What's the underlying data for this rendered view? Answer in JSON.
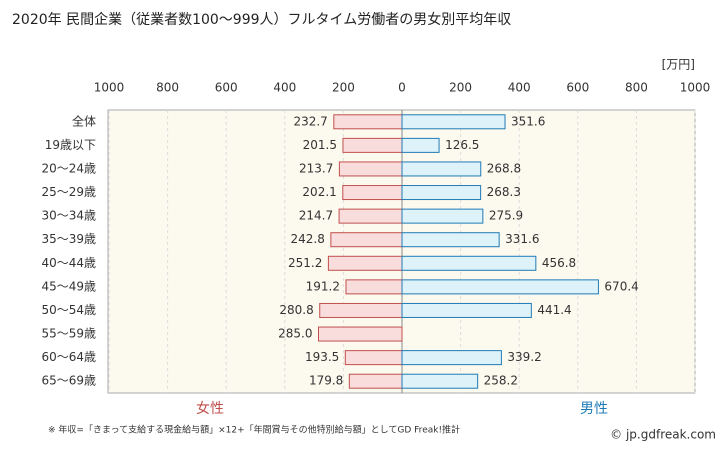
{
  "chart_data": {
    "type": "butterfly-bar",
    "title": "2020年 民間企業（従業者数100〜999人）フルタイム労働者の男女別平均年収",
    "unit": "[万円]",
    "categories": [
      "全体",
      "19歳以下",
      "20〜24歳",
      "25〜29歳",
      "30〜34歳",
      "35〜39歳",
      "40〜44歳",
      "45〜49歳",
      "50〜54歳",
      "55〜59歳",
      "60〜64歳",
      "65〜69歳"
    ],
    "series": [
      {
        "name": "女性",
        "side": "left",
        "color": "#c0504d",
        "fill": "#f9dcdc",
        "values": [
          232.7,
          201.5,
          213.7,
          202.1,
          214.7,
          242.8,
          251.2,
          191.2,
          280.8,
          285.0,
          193.5,
          179.8
        ],
        "value_labels": [
          "232.7",
          "201.5",
          "213.7",
          "202.1",
          "214.7",
          "242.8",
          "251.2",
          "191.2",
          "280.8",
          "285.0",
          "193.5",
          "179.8"
        ]
      },
      {
        "name": "男性",
        "side": "right",
        "color": "#1f7bb6",
        "fill": "#def2fa",
        "values": [
          351.6,
          126.5,
          268.8,
          268.3,
          275.9,
          331.6,
          456.8,
          670.4,
          441.4,
          null,
          339.2,
          258.2
        ],
        "value_labels": [
          "351.6",
          "126.5",
          "268.8",
          "268.3",
          "275.9",
          "331.6",
          "456.8",
          "670.4",
          "441.4",
          null,
          "339.2",
          "258.2"
        ]
      }
    ],
    "xlim": [
      0,
      1000
    ],
    "xticks": [
      0,
      200,
      400,
      600,
      800,
      1000
    ],
    "grid": true,
    "footnote": "※ 年収=「きまって支給する現金給与額」×12+「年間賞与その他特別給与額」としてGD Freak!推計",
    "copyright": "© jp.gdfreak.com"
  }
}
